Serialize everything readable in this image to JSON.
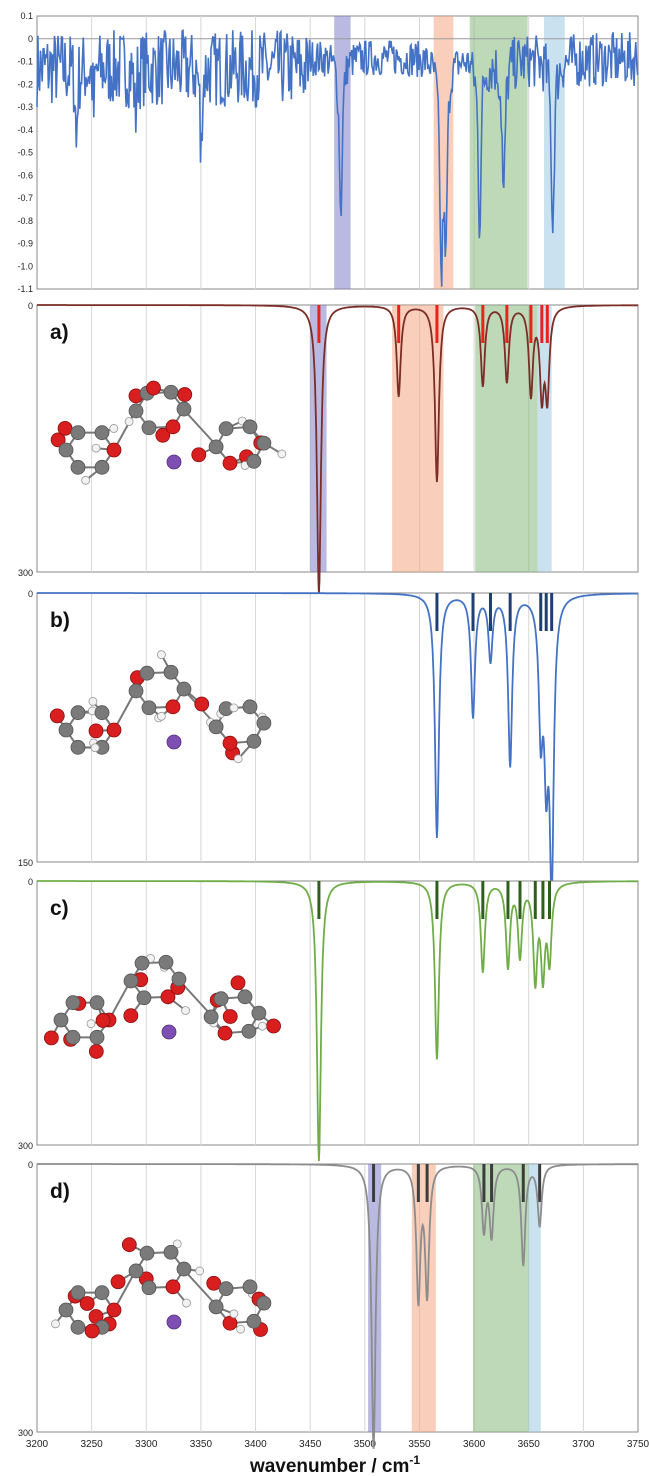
{
  "figure": {
    "xlabel_main": "wavenumber / cm",
    "xlabel_sup": "-1",
    "x_ticks": [
      3200,
      3250,
      3300,
      3350,
      3400,
      3450,
      3500,
      3550,
      3600,
      3650,
      3700,
      3750
    ],
    "xlim": [
      3200,
      3750
    ]
  },
  "chart_data": [
    {
      "type": "line",
      "panel": "experimental",
      "ylim": [
        -1.1,
        0.1
      ],
      "y_ticks": [
        "0.1",
        "0",
        "-0.1",
        "-0.2",
        "-0.3",
        "-0.4",
        "-0.5",
        "-0.6",
        "-0.7",
        "-0.8",
        "-0.9",
        "-1.0",
        "-1.1"
      ],
      "series_color": "#4472c4",
      "highlight_bands": [
        {
          "x0": 3472,
          "x1": 3487,
          "color": "#8080c8"
        },
        {
          "x0": 3563,
          "x1": 3581,
          "color": "#f4a582"
        },
        {
          "x0": 3596,
          "x1": 3649,
          "color": "#86b97e"
        },
        {
          "x0": 3664,
          "x1": 3683,
          "color": "#9ecae1"
        }
      ],
      "peaks": [
        {
          "x": 3236,
          "y": -0.45
        },
        {
          "x": 3252,
          "y": -0.3
        },
        {
          "x": 3290,
          "y": -0.33
        },
        {
          "x": 3350,
          "y": -0.54
        },
        {
          "x": 3478,
          "y": -0.8
        },
        {
          "x": 3570,
          "y": -1.0
        },
        {
          "x": 3574,
          "y": -0.9
        },
        {
          "x": 3605,
          "y": -0.82
        },
        {
          "x": 3627,
          "y": -0.73
        },
        {
          "x": 3672,
          "y": -0.85
        }
      ]
    },
    {
      "type": "line",
      "panel": "a)",
      "ylim": [
        0,
        300
      ],
      "y_ticks": [
        "0",
        "300"
      ],
      "series_color": "#7b2d26",
      "stick_color": "#e8231b",
      "highlight_bands": [
        {
          "x0": 3450,
          "x1": 3465,
          "color": "#8080c8"
        },
        {
          "x0": 3525,
          "x1": 3572,
          "color": "#f4a582"
        },
        {
          "x0": 3601,
          "x1": 3658,
          "color": "#86b97e"
        },
        {
          "x0": 3658,
          "x1": 3671,
          "color": "#9ecae1"
        }
      ],
      "peaks": [
        {
          "x": 3458,
          "y": 325
        },
        {
          "x": 3531,
          "y": 102
        },
        {
          "x": 3566,
          "y": 198
        },
        {
          "x": 3608,
          "y": 90
        },
        {
          "x": 3630,
          "y": 85
        },
        {
          "x": 3652,
          "y": 98
        },
        {
          "x": 3662,
          "y": 95
        },
        {
          "x": 3667,
          "y": 98
        }
      ]
    },
    {
      "type": "line",
      "panel": "b)",
      "ylim": [
        0,
        150
      ],
      "y_ticks": [
        "0",
        "150"
      ],
      "series_color": "#4472c4",
      "stick_color": "#1f3f73",
      "highlight_bands": [],
      "peaks": [
        {
          "x": 3566,
          "y": 136
        },
        {
          "x": 3599,
          "y": 68
        },
        {
          "x": 3615,
          "y": 36
        },
        {
          "x": 3633,
          "y": 95
        },
        {
          "x": 3661,
          "y": 70
        },
        {
          "x": 3666,
          "y": 85
        },
        {
          "x": 3671,
          "y": 155
        }
      ]
    },
    {
      "type": "line",
      "panel": "c)",
      "ylim": [
        0,
        300
      ],
      "y_ticks": [
        "0",
        "300"
      ],
      "series_color": "#70ad47",
      "stick_color": "#2f5f1e",
      "highlight_bands": [],
      "peaks": [
        {
          "x": 3458,
          "y": 318
        },
        {
          "x": 3566,
          "y": 202
        },
        {
          "x": 3608,
          "y": 102
        },
        {
          "x": 3631,
          "y": 95
        },
        {
          "x": 3642,
          "y": 82
        },
        {
          "x": 3656,
          "y": 108
        },
        {
          "x": 3663,
          "y": 100
        },
        {
          "x": 3669,
          "y": 85
        }
      ]
    },
    {
      "type": "line",
      "panel": "d)",
      "ylim": [
        0,
        300
      ],
      "y_ticks": [
        "0",
        "300"
      ],
      "series_color": "#8c8c8c",
      "stick_color": "#3c3c3c",
      "highlight_bands": [
        {
          "x0": 3503,
          "x1": 3515,
          "color": "#8080c8"
        },
        {
          "x0": 3543,
          "x1": 3565,
          "color": "#f4a582"
        },
        {
          "x0": 3599,
          "x1": 3650,
          "color": "#86b97e"
        },
        {
          "x0": 3650,
          "x1": 3661,
          "color": "#9ecae1"
        }
      ],
      "peaks": [
        {
          "x": 3508,
          "y": 318
        },
        {
          "x": 3549,
          "y": 148
        },
        {
          "x": 3557,
          "y": 142
        },
        {
          "x": 3609,
          "y": 72
        },
        {
          "x": 3616,
          "y": 78
        },
        {
          "x": 3645,
          "y": 112
        },
        {
          "x": 3660,
          "y": 68
        }
      ]
    }
  ]
}
